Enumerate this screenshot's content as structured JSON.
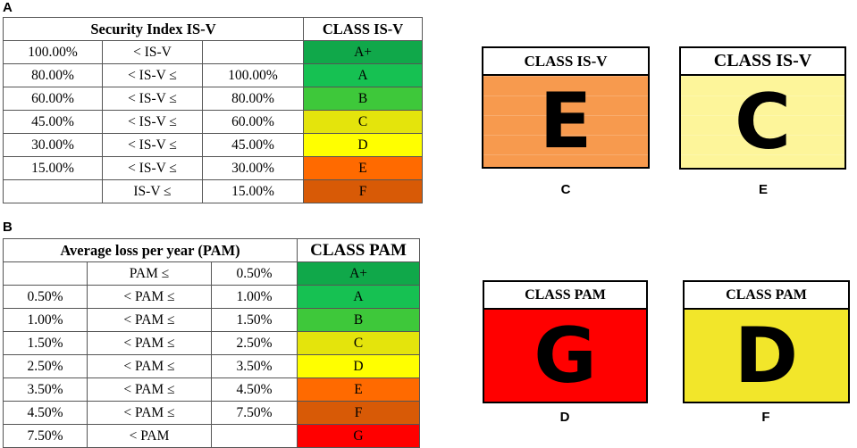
{
  "panel_labels": {
    "a": "A",
    "b": "B",
    "c": "C",
    "d": "D",
    "e": "E",
    "f": "F"
  },
  "table_a": {
    "header": {
      "left": "Security Index IS-V",
      "right": "CLASS IS-V"
    },
    "rows": [
      {
        "low": "100.00%",
        "op": "< IS-V",
        "high": "",
        "cls": "A+",
        "color": "#10a84a"
      },
      {
        "low": "80.00%",
        "op": "< IS-V ≤",
        "high": "100.00%",
        "cls": "A",
        "color": "#16c152"
      },
      {
        "low": "60.00%",
        "op": "< IS-V ≤",
        "high": "80.00%",
        "cls": "B",
        "color": "#3ec83a"
      },
      {
        "low": "45.00%",
        "op": "< IS-V ≤",
        "high": "60.00%",
        "cls": "C",
        "color": "#e4e40c"
      },
      {
        "low": "30.00%",
        "op": "< IS-V ≤",
        "high": "45.00%",
        "cls": "D",
        "color": "#ffff00"
      },
      {
        "low": "15.00%",
        "op": "< IS-V ≤",
        "high": "30.00%",
        "cls": "E",
        "color": "#ff6a00"
      },
      {
        "low": "",
        "op": "IS-V ≤",
        "high": "15.00%",
        "cls": "F",
        "color": "#d85a06"
      }
    ]
  },
  "table_b": {
    "header": {
      "left": "Average loss per year (PAM)",
      "right": "CLASS PAM"
    },
    "rows": [
      {
        "low": "",
        "op": "PAM ≤",
        "high": "0.50%",
        "cls": "A+",
        "color": "#10a84a"
      },
      {
        "low": "0.50%",
        "op": "< PAM ≤",
        "high": "1.00%",
        "cls": "A",
        "color": "#16c152"
      },
      {
        "low": "1.00%",
        "op": "< PAM ≤",
        "high": "1.50%",
        "cls": "B",
        "color": "#3ec83a"
      },
      {
        "low": "1.50%",
        "op": "< PAM ≤",
        "high": "2.50%",
        "cls": "C",
        "color": "#e4e40c"
      },
      {
        "low": "2.50%",
        "op": "< PAM ≤",
        "high": "3.50%",
        "cls": "D",
        "color": "#ffff00"
      },
      {
        "low": "3.50%",
        "op": "< PAM ≤",
        "high": "4.50%",
        "cls": "E",
        "color": "#ff6a00"
      },
      {
        "low": "4.50%",
        "op": "< PAM ≤",
        "high": "7.50%",
        "cls": "F",
        "color": "#d85a06"
      },
      {
        "low": "7.50%",
        "op": "< PAM",
        "high": "",
        "cls": "G",
        "color": "#ff0000"
      }
    ]
  },
  "badges": {
    "c": {
      "title": "CLASS IS-V",
      "letter": "E",
      "color": "#f79a4e"
    },
    "e": {
      "title": "CLASS IS-V",
      "letter": "C",
      "color": "#fdf59a"
    },
    "d": {
      "title": "CLASS PAM",
      "letter": "G",
      "color": "#ff0000"
    },
    "f": {
      "title": "CLASS PAM",
      "letter": "D",
      "color": "#f2e62a"
    }
  }
}
